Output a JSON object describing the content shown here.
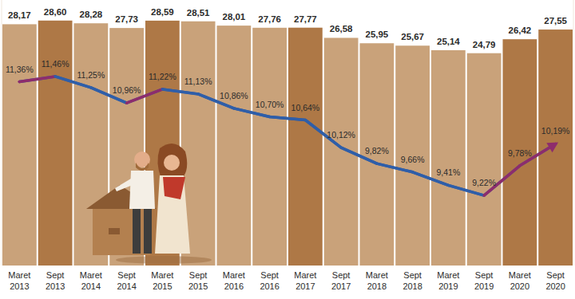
{
  "chart_data": {
    "type": "bar",
    "categories": [
      "Maret 2013",
      "Sept 2013",
      "Maret 2014",
      "Sept 2014",
      "Maret 2015",
      "Sept 2015",
      "Maret 2016",
      "Sept 2016",
      "Maret 2017",
      "Sept 2017",
      "Maret 2018",
      "Sept 2018",
      "Maret 2019",
      "Sept 2019",
      "Maret 2020",
      "Sept 2020"
    ],
    "series": [
      {
        "type": "bar",
        "colors": [
          "#c9a27a",
          "#ae7846",
          "#c9a27a",
          "#c9a27a",
          "#ae7846",
          "#c9a27a",
          "#c9a27a",
          "#c9a27a",
          "#ae7846",
          "#c9a27a",
          "#c9a27a",
          "#c9a27a",
          "#c9a27a",
          "#c9a27a",
          "#ae7846",
          "#ae7846"
        ],
        "values": [
          28.17,
          28.6,
          28.28,
          27.73,
          28.59,
          28.51,
          28.01,
          27.76,
          27.77,
          26.58,
          25.95,
          25.67,
          25.14,
          24.79,
          26.42,
          27.55
        ],
        "value_labels": [
          "28,17",
          "28,60",
          "28,28",
          "27,73",
          "28,59",
          "28,51",
          "28,01",
          "27,76",
          "27,77",
          "26,58",
          "25,95",
          "25,67",
          "25,14",
          "24,79",
          "26,42",
          "27,55"
        ]
      },
      {
        "type": "line",
        "axis": "y2",
        "color": "#2f5ea8",
        "colors": [
          "#8e2c6c",
          "#8e2c6c",
          "#2f5ea8",
          "#2f5ea8",
          "#8e2c6c",
          "#2f5ea8",
          "#2f5ea8",
          "#2f5ea8",
          "#2f5ea8",
          "#2f5ea8",
          "#2f5ea8",
          "#2f5ea8",
          "#2f5ea8",
          "#2f5ea8",
          "#8e2c6c",
          "#8e2c6c"
        ],
        "values": [
          11.36,
          11.46,
          11.25,
          10.96,
          11.22,
          11.13,
          10.86,
          10.7,
          10.64,
          10.12,
          9.82,
          9.66,
          9.41,
          9.22,
          9.78,
          10.19
        ],
        "value_labels": [
          "11,36%",
          "11,46%",
          "11,25%",
          "10,96%",
          "11,22%",
          "11,13%",
          "10,86%",
          "10,70%",
          "10,64%",
          "10,12%",
          "9,82%",
          "9,66%",
          "9,41%",
          "9,22%",
          "9,78%",
          "10,19%"
        ]
      }
    ],
    "ylim": [
      0,
      31
    ],
    "y2lim": [
      7.9,
      12.9
    ],
    "data_labels": true,
    "tick_labels": false
  }
}
